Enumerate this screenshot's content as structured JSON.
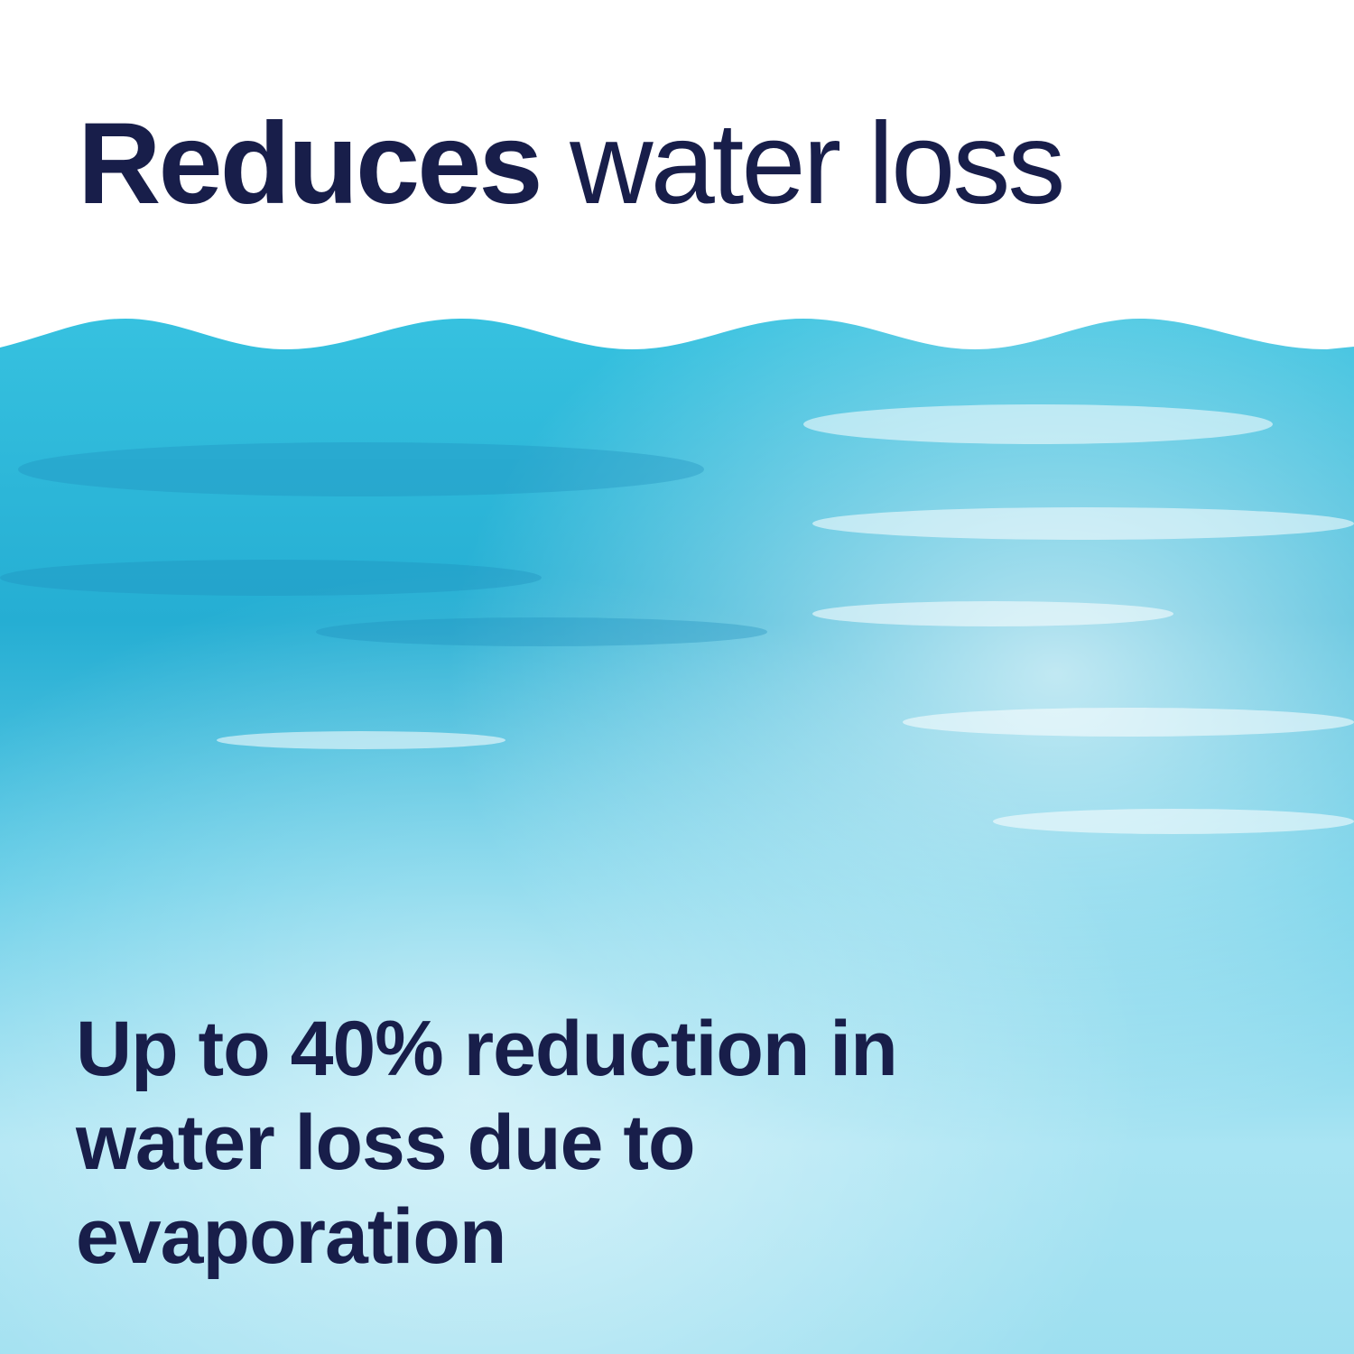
{
  "headline": {
    "bold": "Reduces",
    "regular": "water loss"
  },
  "body_text": "Up to 40% reduction in water loss due to evaporation",
  "colors": {
    "text": "#181e4a",
    "water_deep": "#2bb6d6",
    "water_light": "#c9eef7"
  }
}
